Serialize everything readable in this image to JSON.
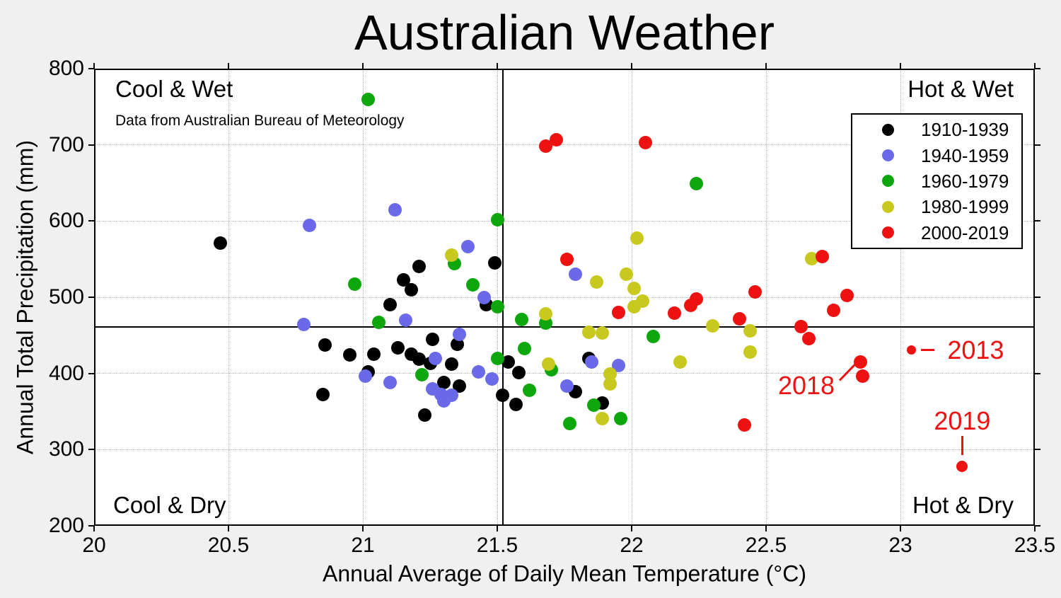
{
  "title": "Australian Weather",
  "subtitle": "Data from Australian Bureau of Meteorology",
  "quadrants": {
    "top_left": "Cool & Wet",
    "top_right": "Hot & Wet",
    "bottom_left": "Cool & Dry",
    "bottom_right": "Hot & Dry"
  },
  "colors": {
    "figure_background": "#f0f0f0",
    "plot_background": "#ffffff",
    "grid": "#b5b5b5",
    "axis": "#000000",
    "annotation": "#ee1111"
  },
  "chart_data": {
    "type": "scatter",
    "title": "Australian Weather",
    "xlabel": "Annual Average of Daily Mean Temperature (°C)",
    "ylabel": "Annual Total Precipitation (mm)",
    "xlim": [
      20,
      23.5
    ],
    "ylim": [
      200,
      800
    ],
    "xticks": [
      20,
      20.5,
      21,
      21.5,
      22,
      22.5,
      23,
      23.5
    ],
    "yticks": [
      200,
      300,
      400,
      500,
      600,
      700,
      800
    ],
    "grid": "dotted",
    "legend_position": "upper right",
    "reference_lines": {
      "x": 21.52,
      "y": 461
    },
    "series": [
      {
        "name": "1910-1939",
        "color": "#000000",
        "points": [
          [
            20.47,
            571
          ],
          [
            20.85,
            372
          ],
          [
            20.86,
            437
          ],
          [
            20.95,
            424
          ],
          [
            21.02,
            402
          ],
          [
            21.04,
            425
          ],
          [
            21.1,
            490
          ],
          [
            21.13,
            434
          ],
          [
            21.15,
            523
          ],
          [
            21.18,
            510
          ],
          [
            21.18,
            425
          ],
          [
            21.21,
            540
          ],
          [
            21.21,
            419
          ],
          [
            21.23,
            345
          ],
          [
            21.25,
            413
          ],
          [
            21.26,
            445
          ],
          [
            21.3,
            388
          ],
          [
            21.33,
            412
          ],
          [
            21.35,
            438
          ],
          [
            21.36,
            383
          ],
          [
            21.46,
            490
          ],
          [
            21.49,
            545
          ],
          [
            21.52,
            371
          ],
          [
            21.54,
            415
          ],
          [
            21.57,
            359
          ],
          [
            21.58,
            401
          ],
          [
            21.79,
            376
          ],
          [
            21.84,
            420
          ],
          [
            21.89,
            361
          ]
        ]
      },
      {
        "name": "1940-1959",
        "color": "#6a6ae8",
        "points": [
          [
            20.78,
            464
          ],
          [
            20.8,
            594
          ],
          [
            21.01,
            396
          ],
          [
            21.1,
            388
          ],
          [
            21.12,
            615
          ],
          [
            21.16,
            470
          ],
          [
            21.26,
            380
          ],
          [
            21.27,
            420
          ],
          [
            21.29,
            372
          ],
          [
            21.3,
            364
          ],
          [
            21.33,
            371
          ],
          [
            21.36,
            451
          ],
          [
            21.39,
            566
          ],
          [
            21.43,
            402
          ],
          [
            21.45,
            500
          ],
          [
            21.48,
            393
          ],
          [
            21.76,
            383
          ],
          [
            21.79,
            530
          ],
          [
            21.85,
            415
          ],
          [
            21.95,
            410
          ]
        ]
      },
      {
        "name": "1960-1979",
        "color": "#0da60d",
        "points": [
          [
            20.97,
            517
          ],
          [
            21.02,
            760
          ],
          [
            21.06,
            467
          ],
          [
            21.22,
            398
          ],
          [
            21.34,
            544
          ],
          [
            21.41,
            516
          ],
          [
            21.5,
            602
          ],
          [
            21.5,
            487
          ],
          [
            21.5,
            420
          ],
          [
            21.59,
            471
          ],
          [
            21.6,
            433
          ],
          [
            21.62,
            378
          ],
          [
            21.68,
            466
          ],
          [
            21.7,
            405
          ],
          [
            21.77,
            334
          ],
          [
            21.86,
            358
          ],
          [
            21.96,
            341
          ],
          [
            22.08,
            448
          ],
          [
            22.24,
            649
          ]
        ]
      },
      {
        "name": "1980-1999",
        "color": "#c8c81e",
        "points": [
          [
            21.33,
            555
          ],
          [
            21.68,
            478
          ],
          [
            21.69,
            412
          ],
          [
            21.84,
            454
          ],
          [
            21.87,
            520
          ],
          [
            21.89,
            453
          ],
          [
            21.89,
            341
          ],
          [
            21.92,
            399
          ],
          [
            21.92,
            386
          ],
          [
            21.98,
            530
          ],
          [
            22.01,
            512
          ],
          [
            22.01,
            487
          ],
          [
            22.02,
            578
          ],
          [
            22.04,
            495
          ],
          [
            22.18,
            415
          ],
          [
            22.3,
            462
          ],
          [
            22.44,
            456
          ],
          [
            22.44,
            428
          ],
          [
            22.67,
            551
          ]
        ]
      },
      {
        "name": "2000-2019",
        "color": "#ee1111",
        "points": [
          [
            21.68,
            698
          ],
          [
            21.72,
            707
          ],
          [
            21.76,
            550
          ],
          [
            21.95,
            480
          ],
          [
            22.05,
            703
          ],
          [
            22.16,
            479
          ],
          [
            22.22,
            489
          ],
          [
            22.24,
            498
          ],
          [
            22.4,
            472
          ],
          [
            22.42,
            332
          ],
          [
            22.46,
            507
          ],
          [
            22.63,
            461
          ],
          [
            22.66,
            446
          ],
          [
            22.71,
            553
          ],
          [
            22.75,
            483
          ],
          [
            22.8,
            502
          ],
          [
            22.85,
            415
          ],
          [
            22.86,
            396
          ],
          [
            23.04,
            431,
            13
          ],
          [
            23.23,
            278,
            16
          ]
        ]
      }
    ],
    "annotations": [
      {
        "label": "2013",
        "point": [
          23.04,
          431
        ],
        "label_at": [
          23.28,
          430
        ],
        "connector": "dash-right"
      },
      {
        "label": "2018",
        "point": [
          22.85,
          415
        ],
        "label_at": [
          22.65,
          384
        ],
        "connector": "diagonal-up-right"
      },
      {
        "label": "2019",
        "point": [
          23.23,
          278
        ],
        "label_at": [
          23.23,
          337
        ],
        "connector": "vertical-down"
      }
    ]
  }
}
